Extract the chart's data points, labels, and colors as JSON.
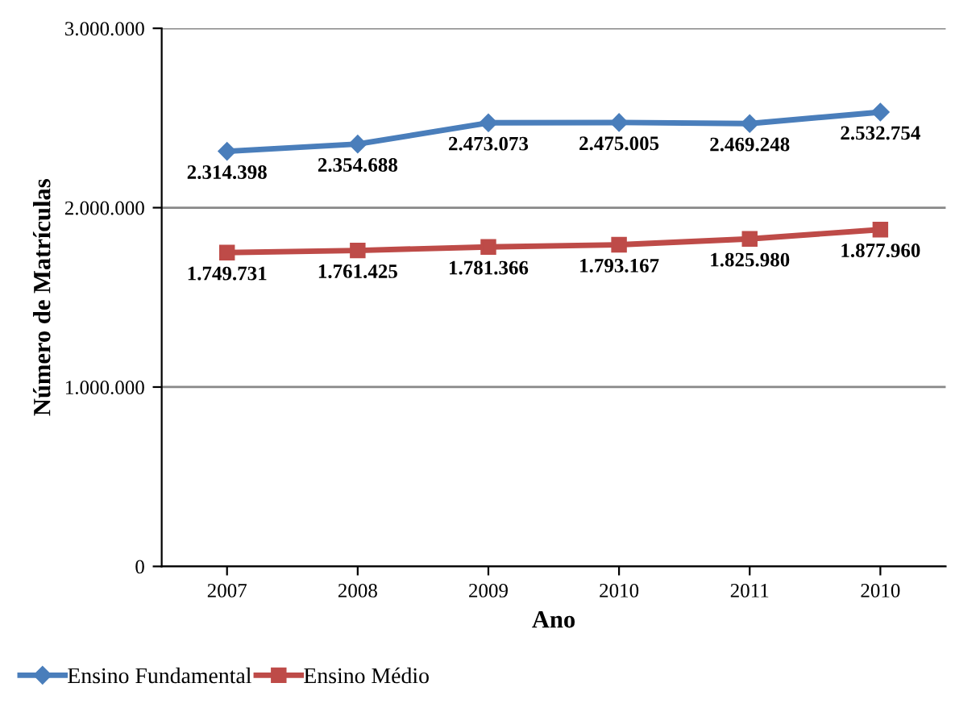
{
  "chart_data": {
    "type": "line",
    "xlabel": "Ano",
    "ylabel": "Número de Matrículas",
    "categories": [
      "2007",
      "2008",
      "2009",
      "2010",
      "2011",
      "2010"
    ],
    "series": [
      {
        "name": "Ensino Fundamental",
        "color": "#4a7ebb",
        "marker": "diamond",
        "values": [
          2314398,
          2354688,
          2473073,
          2475005,
          2469248,
          2532754
        ],
        "value_labels": [
          "2.314.398",
          "2.354.688",
          "2.473.073",
          "2.475.005",
          "2.469.248",
          "2.532.754"
        ]
      },
      {
        "name": "Ensino Médio",
        "color": "#be4b48",
        "marker": "square",
        "values": [
          1749731,
          1761425,
          1781366,
          1793167,
          1825980,
          1877960
        ],
        "value_labels": [
          "1.749.731",
          "1.761.425",
          "1.781.366",
          "1.793.167",
          "1.825.980",
          "1.877.960"
        ]
      }
    ],
    "ylim": [
      0,
      3000000
    ],
    "yticks": [
      {
        "value": 0,
        "label": "0"
      },
      {
        "value": 1000000,
        "label": "1.000.000"
      },
      {
        "value": 2000000,
        "label": "2.000.000"
      },
      {
        "value": 3000000,
        "label": "3.000.000"
      }
    ],
    "grid": "y",
    "legend": "bottom left"
  }
}
